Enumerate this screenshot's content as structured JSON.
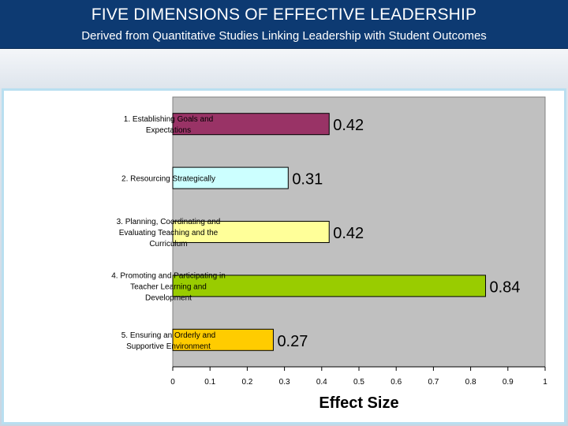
{
  "header": {
    "title": "FIVE DIMENSIONS OF EFFECTIVE LEADERSHIP",
    "subtitle": "Derived from Quantitative Studies Linking Leadership with Student Outcomes"
  },
  "chart_data": {
    "type": "bar",
    "orientation": "horizontal",
    "title": "",
    "xlabel": "Effect Size",
    "ylabel": "",
    "xlim": [
      0,
      1
    ],
    "xticks": [
      "0",
      "0.1",
      "0.2",
      "0.3",
      "0.4",
      "0.5",
      "0.6",
      "0.7",
      "0.8",
      "0.9",
      "1"
    ],
    "grid": false,
    "plot_background": "#c0c0c0",
    "categories": [
      [
        "1. Establishing Goals and",
        "Expectations"
      ],
      [
        "2. Resourcing Strategically"
      ],
      [
        "3. Planning, Coordinating and",
        "Evaluating Teaching and the",
        "Curriculum"
      ],
      [
        "4. Promoting and Participating in",
        "Teacher Learning and",
        "Development"
      ],
      [
        "5. Ensuring an Orderly and",
        "Supportive Environment"
      ]
    ],
    "values": [
      0.42,
      0.31,
      0.42,
      0.84,
      0.27
    ],
    "value_labels": [
      "0.42",
      "0.31",
      "0.42",
      "0.84",
      "0.27"
    ],
    "colors": [
      "#993366",
      "#ccffff",
      "#ffff99",
      "#99cc00",
      "#ffcc00"
    ]
  }
}
